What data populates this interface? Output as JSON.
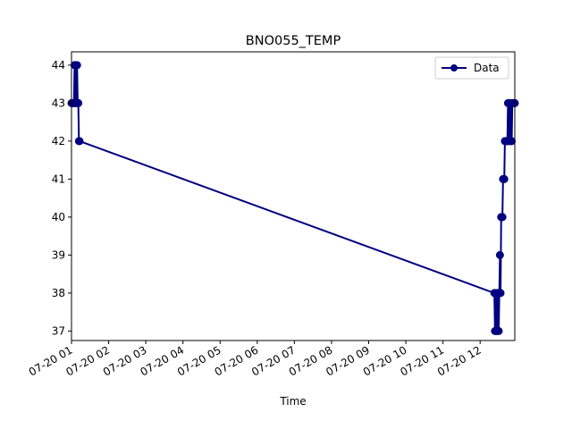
{
  "chart_data": {
    "type": "line",
    "title": "BNO055_TEMP",
    "xlabel": "Time",
    "ylabel": "",
    "x_ticks": [
      "07-20 01",
      "07-20 02",
      "07-20 03",
      "07-20 04",
      "07-20 05",
      "07-20 06",
      "07-20 07",
      "07-20 08",
      "07-20 09",
      "07-20 10",
      "07-20 11",
      "07-20 12"
    ],
    "y_ticks": [
      "37",
      "38",
      "39",
      "40",
      "41",
      "42",
      "43",
      "44"
    ],
    "xlim": [
      "2024-07-20 01:00",
      "2024-07-20 12:56"
    ],
    "ylim": [
      36.75,
      44.35
    ],
    "legend": "top-right",
    "grid": false,
    "series": [
      {
        "name": "Data",
        "color": "#000080",
        "marker": "circle",
        "x": [
          "2024-07-20 01:00",
          "2024-07-20 01:02",
          "2024-07-20 01:03",
          "2024-07-20 01:04",
          "2024-07-20 01:05",
          "2024-07-20 01:06",
          "2024-07-20 01:07",
          "2024-07-20 01:08",
          "2024-07-20 01:09",
          "2024-07-20 01:10",
          "2024-07-20 01:11",
          "2024-07-20 01:12",
          "2024-07-20 01:13",
          "2024-07-20 12:23",
          "2024-07-20 12:24",
          "2024-07-20 12:25",
          "2024-07-20 12:26",
          "2024-07-20 12:27",
          "2024-07-20 12:28",
          "2024-07-20 12:29",
          "2024-07-20 12:30",
          "2024-07-20 12:31",
          "2024-07-20 12:32",
          "2024-07-20 12:33",
          "2024-07-20 12:34",
          "2024-07-20 12:35",
          "2024-07-20 12:36",
          "2024-07-20 12:37",
          "2024-07-20 12:38",
          "2024-07-20 12:39",
          "2024-07-20 12:40",
          "2024-07-20 12:41",
          "2024-07-20 12:42",
          "2024-07-20 12:43",
          "2024-07-20 12:44",
          "2024-07-20 12:45",
          "2024-07-20 12:46",
          "2024-07-20 12:47",
          "2024-07-20 12:48",
          "2024-07-20 12:49",
          "2024-07-20 12:50",
          "2024-07-20 12:51",
          "2024-07-20 12:52",
          "2024-07-20 12:53",
          "2024-07-20 12:54",
          "2024-07-20 12:55",
          "2024-07-20 12:56"
        ],
        "y": [
          43,
          43,
          43,
          43,
          44,
          44,
          43,
          43,
          44,
          43,
          43,
          42,
          42,
          38,
          37,
          38,
          37,
          38,
          37,
          38,
          37,
          38,
          39,
          38,
          40,
          40,
          40,
          41,
          41,
          41,
          42,
          42,
          42,
          42,
          42,
          43,
          43,
          42,
          43,
          42,
          43,
          42,
          43,
          43,
          43,
          43,
          43
        ]
      }
    ]
  }
}
